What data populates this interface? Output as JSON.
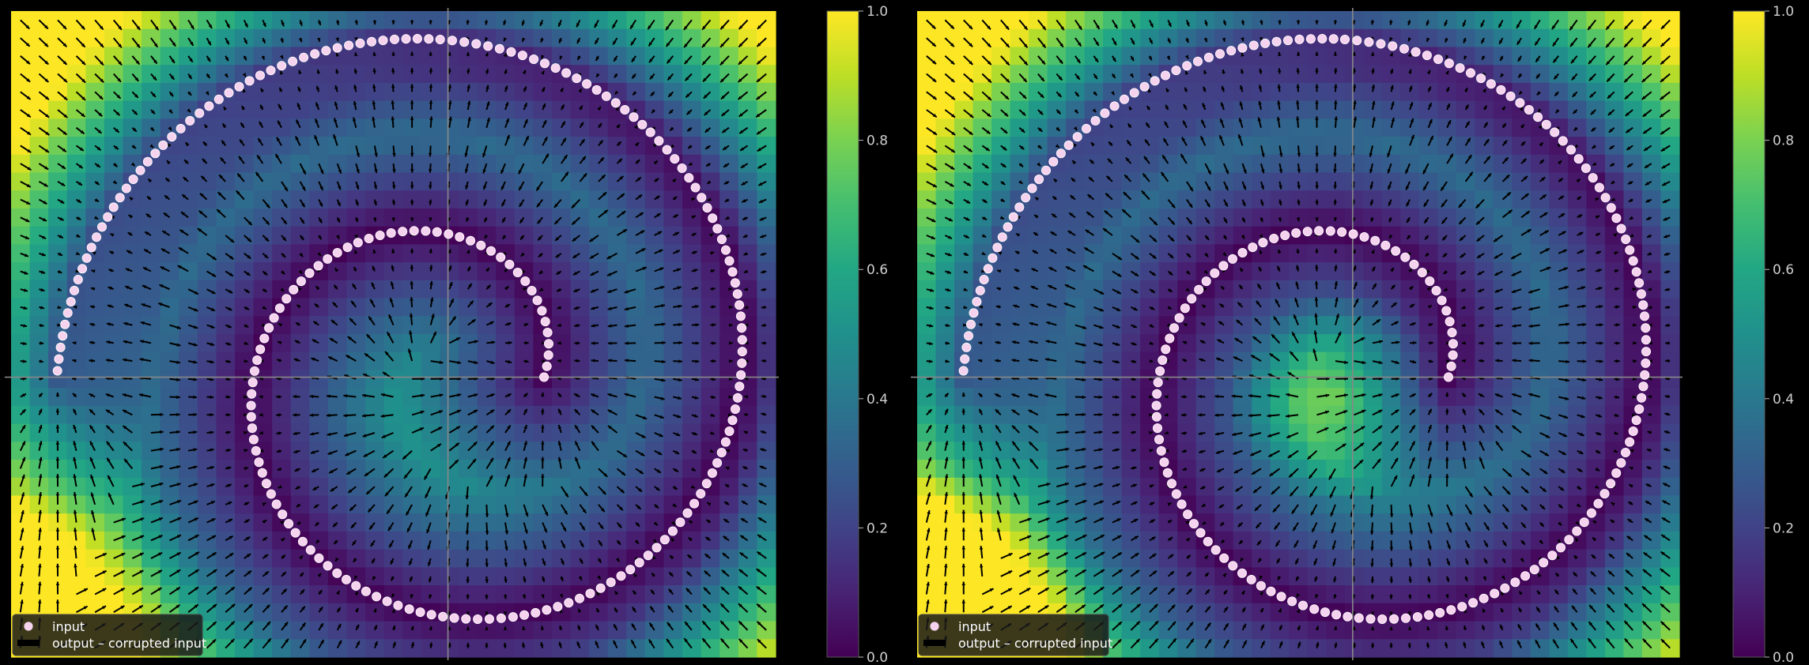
{
  "chart_data": [
    {
      "type": "heatmap",
      "panel": "left",
      "title": "",
      "xlabel": "",
      "ylabel": "",
      "xlim": [
        -1.0,
        0.75
      ],
      "ylim": [
        -0.65,
        0.85
      ],
      "grid": false,
      "axes_cross_at": [
        0,
        0
      ],
      "heatmap": {
        "description_field": "normalized magnitude of output - corrupted input over the input plane",
        "range": [
          0,
          1
        ],
        "colormap": "viridis",
        "resolution": [
          41,
          36
        ]
      },
      "spiral": {
        "label": "input",
        "center": [
          0,
          0
        ],
        "radius_start": 0.22,
        "radius_growth_per_turn": 0.45,
        "start_angle_deg": 0,
        "turn_degrees": 540,
        "color": "#f5d3ee"
      },
      "quiver": {
        "label": "output – corrupted input",
        "color": "#000000"
      },
      "colorbar": {
        "ticks": [
          "0.0",
          "0.2",
          "0.4",
          "0.6",
          "0.8",
          "1.0"
        ],
        "values": [
          0.0,
          0.2,
          0.4,
          0.6,
          0.8,
          1.0
        ]
      },
      "legend": {
        "position": "lower-left",
        "entries": [
          {
            "marker": "dot",
            "label": "input"
          },
          {
            "marker": "arrow",
            "label": "output – corrupted input"
          }
        ]
      }
    },
    {
      "type": "heatmap",
      "panel": "right",
      "title": "",
      "xlabel": "",
      "ylabel": "",
      "xlim": [
        -1.0,
        0.75
      ],
      "ylim": [
        -0.65,
        0.85
      ],
      "grid": false,
      "axes_cross_at": [
        0,
        0
      ],
      "heatmap": {
        "description_field": "normalized magnitude of output - corrupted input over the input plane",
        "range": [
          0,
          1
        ],
        "colormap": "viridis",
        "resolution": [
          41,
          36
        ]
      },
      "spiral": {
        "label": "input",
        "center": [
          0,
          0
        ],
        "radius_start": 0.22,
        "radius_growth_per_turn": 0.45,
        "start_angle_deg": 0,
        "turn_degrees": 540,
        "color": "#f5d3ee"
      },
      "quiver": {
        "label": "output – corrupted input",
        "color": "#000000"
      },
      "colorbar": {
        "ticks": [
          "0.0",
          "0.2",
          "0.4",
          "0.6",
          "0.8",
          "1.0"
        ],
        "values": [
          0.0,
          0.2,
          0.4,
          0.6,
          0.8,
          1.0
        ]
      },
      "legend": {
        "position": "lower-left",
        "entries": [
          {
            "marker": "dot",
            "label": "input"
          },
          {
            "marker": "arrow",
            "label": "output – corrupted input"
          }
        ]
      }
    }
  ]
}
